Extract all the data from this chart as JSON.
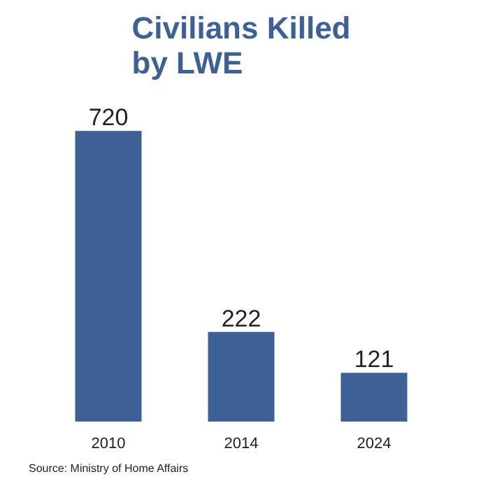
{
  "chart_data": {
    "type": "bar",
    "title": "Civilians Killed by LWE",
    "categories": [
      "2010",
      "2014",
      "2024"
    ],
    "values": [
      720,
      222,
      121
    ],
    "color": "#3d6196",
    "data_labels": true,
    "annotations": [
      "Source: Ministry of Home Affairs"
    ]
  }
}
